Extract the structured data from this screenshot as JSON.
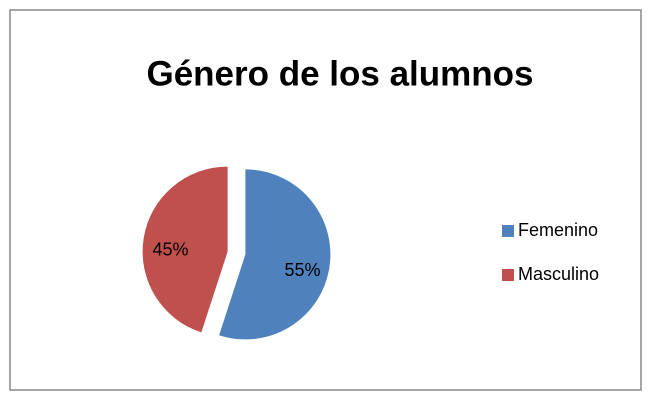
{
  "chart_data": {
    "type": "pie",
    "title": "Género de los alumnos",
    "categories": [
      "Femenino",
      "Masculino"
    ],
    "values": [
      55,
      45
    ],
    "value_labels": [
      "55%",
      "45%"
    ],
    "colors": [
      "#4f81bd",
      "#c0504d"
    ],
    "legend": "right"
  }
}
